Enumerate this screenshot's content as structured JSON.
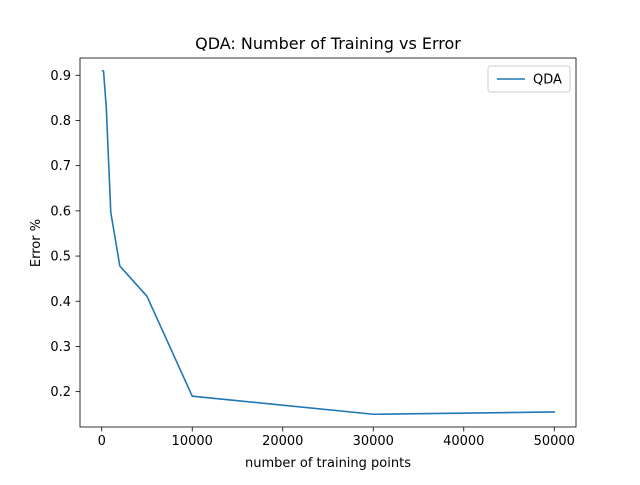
{
  "chart_data": {
    "type": "line",
    "title": "QDA: Number of Training vs Error",
    "xlabel": "number of training points",
    "ylabel": "Error %",
    "xlim": [
      -2400,
      52400
    ],
    "ylim": [
      0.1218,
      0.9382
    ],
    "xticks": [
      0,
      10000,
      20000,
      30000,
      40000,
      50000
    ],
    "xtick_labels": [
      "0",
      "10000",
      "20000",
      "30000",
      "40000",
      "50000"
    ],
    "yticks": [
      0.2,
      0.3,
      0.4,
      0.5,
      0.6,
      0.7,
      0.8,
      0.9
    ],
    "ytick_labels": [
      "0.2",
      "0.3",
      "0.4",
      "0.5",
      "0.6",
      "0.7",
      "0.8",
      "0.9"
    ],
    "grid": false,
    "legend_position": "upper right",
    "series": [
      {
        "name": "QDA",
        "color": "#1f77b4",
        "x": [
          100,
          200,
          500,
          1000,
          2000,
          5000,
          10000,
          30000,
          50000
        ],
        "y": [
          0.91,
          0.909,
          0.83,
          0.597,
          0.478,
          0.411,
          0.19,
          0.15,
          0.155
        ]
      }
    ]
  }
}
